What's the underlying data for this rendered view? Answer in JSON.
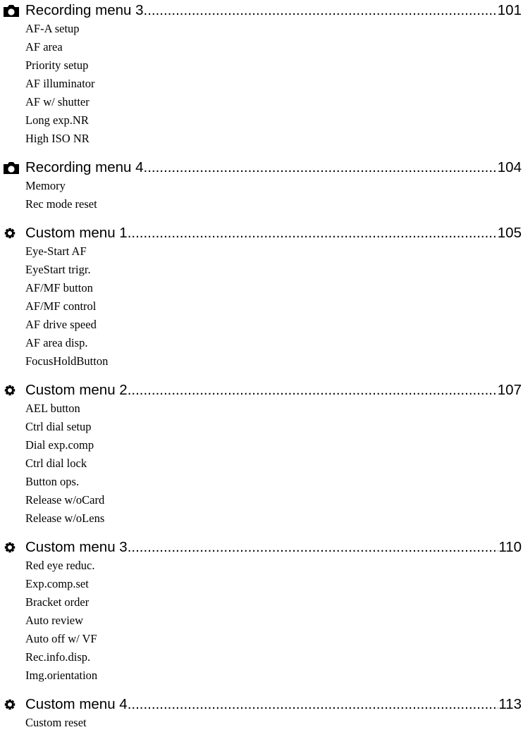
{
  "sections": [
    {
      "icon": "camera-icon",
      "title": "Recording menu 3",
      "page": "101",
      "items": [
        "AF-A setup",
        "AF area",
        "Priority setup",
        "AF illuminator",
        "AF w/ shutter",
        "Long exp.NR",
        "High ISO NR"
      ]
    },
    {
      "icon": "camera-icon",
      "title": "Recording menu 4",
      "page": "104",
      "items": [
        "Memory",
        "Rec mode reset"
      ]
    },
    {
      "icon": "gear-icon",
      "title": "Custom menu 1",
      "page": "105",
      "items": [
        "Eye-Start AF",
        "EyeStart trigr.",
        "AF/MF button",
        "AF/MF control",
        "AF drive speed",
        "AF area disp.",
        "FocusHoldButton"
      ]
    },
    {
      "icon": "gear-icon",
      "title": "Custom menu 2",
      "page": "107",
      "items": [
        "AEL button",
        "Ctrl dial setup",
        "Dial exp.comp",
        "Ctrl dial lock",
        "Button ops.",
        "Release w/oCard",
        "Release w/oLens"
      ]
    },
    {
      "icon": "gear-icon",
      "title": "Custom menu 3",
      "page": "110",
      "items": [
        "Red eye reduc.",
        "Exp.comp.set",
        "Bracket order",
        "Auto review",
        "Auto off w/ VF",
        "Rec.info.disp.",
        "Img.orientation"
      ]
    },
    {
      "icon": "gear-icon",
      "title": "Custom menu 4",
      "page": "113",
      "items": [
        "Custom reset"
      ]
    }
  ]
}
